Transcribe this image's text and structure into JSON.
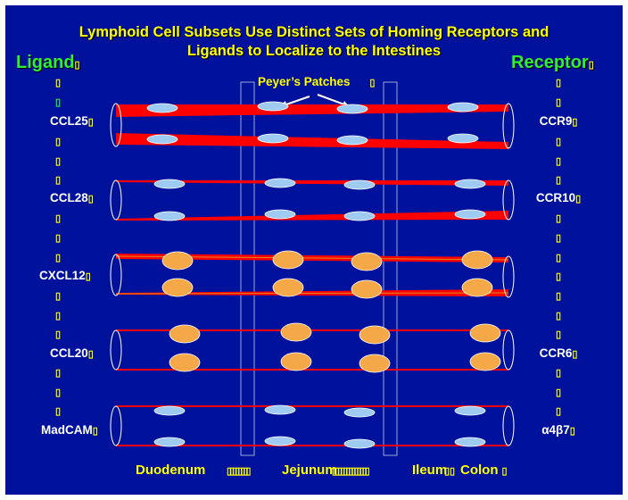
{
  "title_line1": "Lymphoid Cell Subsets Use Distinct Sets of Homing Receptors and",
  "title_line2": "Ligands to Localize to the Intestines",
  "ligand_header": "Ligand",
  "receptor_header": "Receptor",
  "peyers_label": "Peyer’s Patches",
  "rows": [
    {
      "ligand": "CCL25",
      "receptor": "CCR9",
      "cell": "lymphocyte"
    },
    {
      "ligand": "CCL28",
      "receptor": "CCR10",
      "cell": "lymphocyte"
    },
    {
      "ligand": "CXCL12",
      "receptor": "",
      "cell": "plasma-cell"
    },
    {
      "ligand": "CCL20",
      "receptor": "CCR6",
      "cell": "plasma-cell"
    },
    {
      "ligand": "MadCAM",
      "receptor": "α4β7",
      "cell": "lymphocyte"
    }
  ],
  "segments": [
    "Duodenum",
    "Jejunum",
    "Ileum",
    "Colon"
  ],
  "colors": {
    "background": "#00129c",
    "title": "#ffff00",
    "header": "#33ee33",
    "vessel": "#ff0000",
    "lymphocyte": "#9fcaf2",
    "plasma_cell": "#f5a848"
  }
}
